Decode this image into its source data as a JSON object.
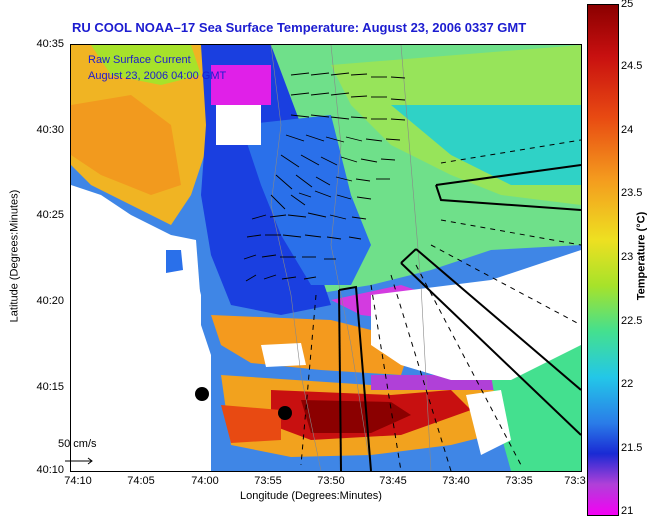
{
  "title": "RU COOL  NOAA–17  Sea Surface Temperature:  August 23, 2006 0337 GMT",
  "inset": {
    "line1": "Raw Surface Current",
    "line2": "August 23, 2006 04:00 GMT"
  },
  "yaxis": {
    "label": "Latitude (Degrees:Minutes)",
    "ticks": [
      "40:35",
      "40:30",
      "40:25",
      "40:20",
      "40:15",
      "40:10"
    ]
  },
  "xaxis": {
    "label": "Longitude (Degrees:Minutes)",
    "ticks": [
      "74:10",
      "74:05",
      "74:00",
      "73:55",
      "73:50",
      "73:45",
      "73:40",
      "73:35",
      "73:3"
    ]
  },
  "colorbar": {
    "label": "Temperature (°C)",
    "ticks": [
      "25",
      "24.5",
      "24",
      "23.5",
      "23",
      "22.5",
      "22",
      "21.5",
      "21"
    ]
  },
  "scale_label": "50 cm/s",
  "colors": {
    "title": "#1c1cd0",
    "land": "#ffffff",
    "cold": "#1a2ad4",
    "warm": "#c81010"
  }
}
